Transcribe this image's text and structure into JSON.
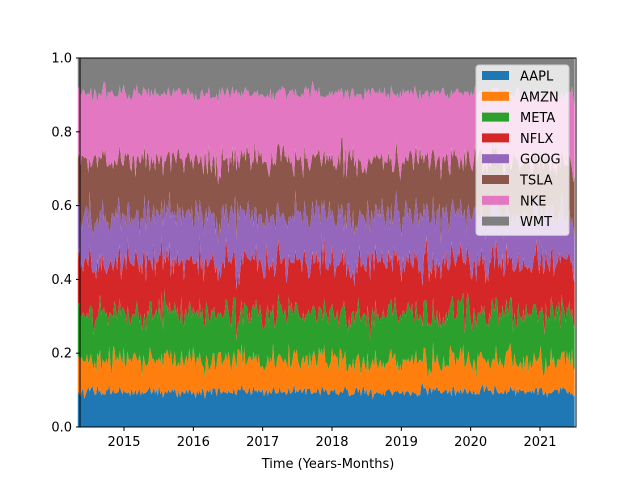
{
  "chart_data": {
    "type": "area",
    "stacked": true,
    "normalized": true,
    "title": "",
    "xlabel": "Time (Years-Months)",
    "ylabel": "",
    "x_range": [
      "2014-05",
      "2021-07"
    ],
    "ylim": [
      0.0,
      1.0
    ],
    "grid": false,
    "legend_position": "top-right",
    "x_ticks": [
      "2015",
      "2016",
      "2017",
      "2018",
      "2019",
      "2020",
      "2021"
    ],
    "y_ticks": [
      "0.0",
      "0.2",
      "0.4",
      "0.6",
      "0.8",
      "1.0"
    ],
    "series": [
      {
        "name": "AAPL",
        "color": "#1f77b4",
        "mean_share": 0.09,
        "noise": 0.012
      },
      {
        "name": "AMZN",
        "color": "#ff7f0e",
        "mean_share": 0.08,
        "noise": 0.035
      },
      {
        "name": "META",
        "color": "#2ca02c",
        "mean_share": 0.12,
        "noise": 0.04
      },
      {
        "name": "NFLX",
        "color": "#d62728",
        "mean_share": 0.13,
        "noise": 0.045
      },
      {
        "name": "GOOG",
        "color": "#9467bd",
        "mean_share": 0.12,
        "noise": 0.045
      },
      {
        "name": "TSLA",
        "color": "#8c564b",
        "mean_share": 0.14,
        "noise": 0.045
      },
      {
        "name": "NKE",
        "color": "#e377c2",
        "mean_share": 0.17,
        "noise": 0.045
      },
      {
        "name": "WMT",
        "color": "#7f7f7f",
        "mean_share": 0.09,
        "noise": 0.02
      }
    ]
  }
}
